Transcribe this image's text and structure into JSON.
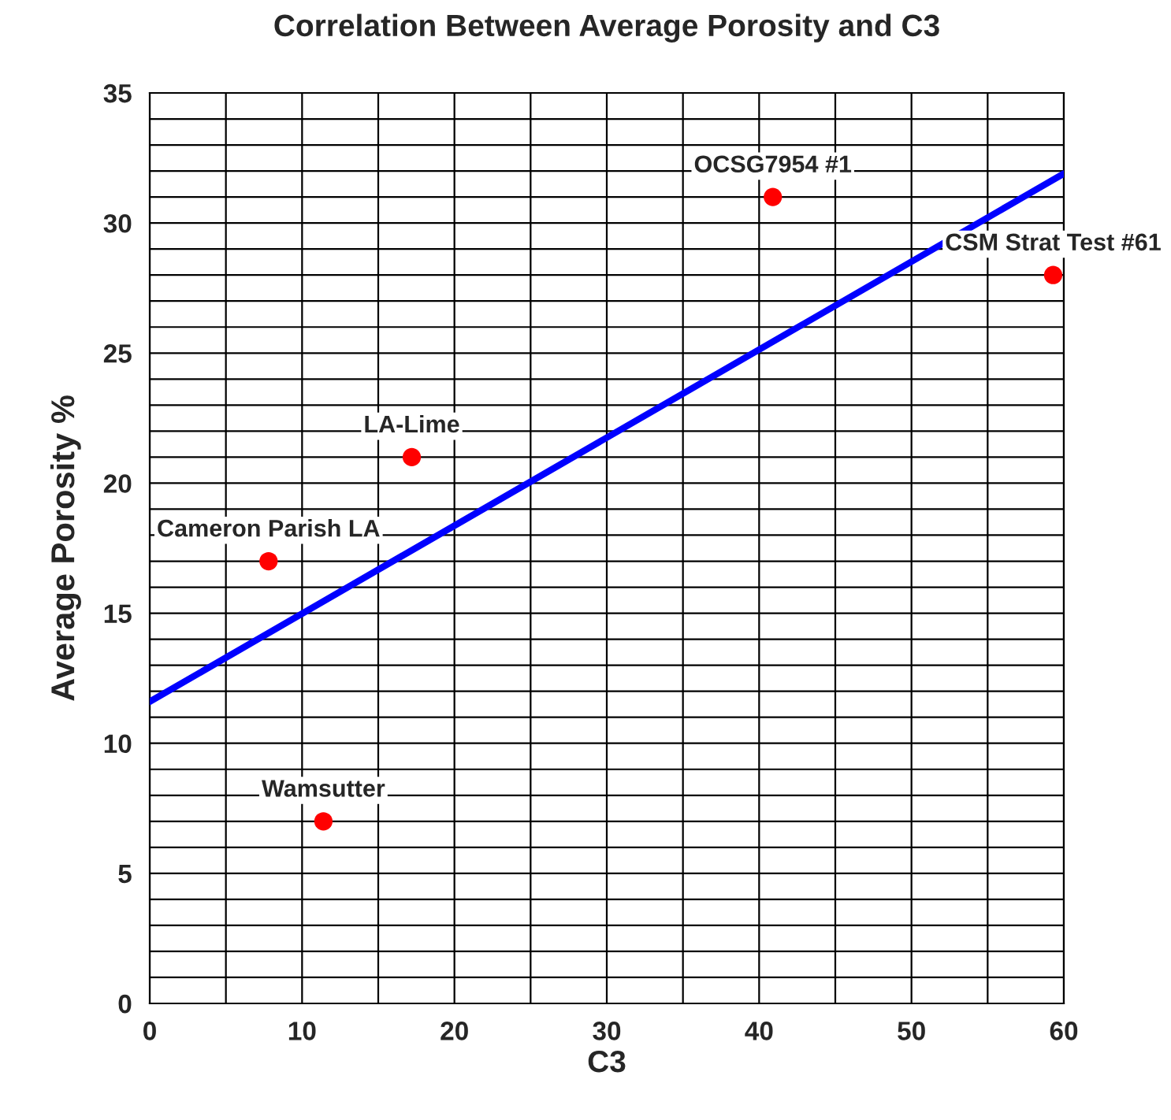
{
  "chart_data": {
    "type": "scatter",
    "title": "Correlation Between Average Porosity and C3",
    "xlabel": "C3",
    "ylabel": "Average Porosity %",
    "xlim": [
      0,
      60
    ],
    "ylim": [
      0,
      35
    ],
    "xticks": [
      0,
      {
        "value": 5,
        "label": null
      },
      10,
      {
        "value": 15,
        "label": null
      },
      20,
      {
        "value": 25,
        "label": null
      },
      30,
      {
        "value": 35,
        "label": null
      },
      40,
      {
        "value": 45,
        "label": null
      },
      50,
      {
        "value": 55,
        "label": null
      },
      60
    ],
    "yticks": [
      0,
      {
        "value": 1,
        "label": null
      },
      {
        "value": 2,
        "label": null
      },
      {
        "value": 3,
        "label": null
      },
      {
        "value": 4,
        "label": null
      },
      5,
      {
        "value": 6,
        "label": null
      },
      {
        "value": 7,
        "label": null
      },
      {
        "value": 8,
        "label": null
      },
      {
        "value": 9,
        "label": null
      },
      10,
      {
        "value": 11,
        "label": null
      },
      {
        "value": 12,
        "label": null
      },
      {
        "value": 13,
        "label": null
      },
      {
        "value": 14,
        "label": null
      },
      15,
      {
        "value": 16,
        "label": null
      },
      {
        "value": 17,
        "label": null
      },
      {
        "value": 18,
        "label": null
      },
      {
        "value": 19,
        "label": null
      },
      20,
      {
        "value": 21,
        "label": null
      },
      {
        "value": 22,
        "label": null
      },
      {
        "value": 23,
        "label": null
      },
      {
        "value": 24,
        "label": null
      },
      25,
      {
        "value": 26,
        "label": null
      },
      {
        "value": 27,
        "label": null
      },
      {
        "value": 28,
        "label": null
      },
      {
        "value": 29,
        "label": null
      },
      30,
      {
        "value": 31,
        "label": null
      },
      {
        "value": 32,
        "label": null
      },
      {
        "value": 33,
        "label": null
      },
      {
        "value": 34,
        "label": null
      },
      35
    ],
    "grid": true,
    "legend": false,
    "marker": "circle",
    "series": [
      {
        "color": "#ff0000",
        "x": [
          7.8,
          17.2,
          11.4,
          40.9,
          59.3
        ],
        "values": [
          17,
          21,
          7,
          31,
          28
        ]
      },
      {
        "type": "line",
        "color": "#0000ff",
        "x": [
          0,
          60
        ],
        "values": [
          11.6,
          31.9
        ],
        "marker": "none",
        "line_style": "solid"
      }
    ],
    "annotations": [
      {
        "text": "Cameron Parish LA",
        "x": 7.8,
        "y": 17
      },
      {
        "text": "LA-Lime",
        "x": 17.2,
        "y": 21
      },
      {
        "text": "Wamsutter",
        "x": 11.4,
        "y": 7
      },
      {
        "text": "OCSG7954 #1",
        "x": 40.9,
        "y": 31
      },
      {
        "text": "CSM Strat Test #61",
        "x": 59.3,
        "y": 28
      }
    ]
  }
}
